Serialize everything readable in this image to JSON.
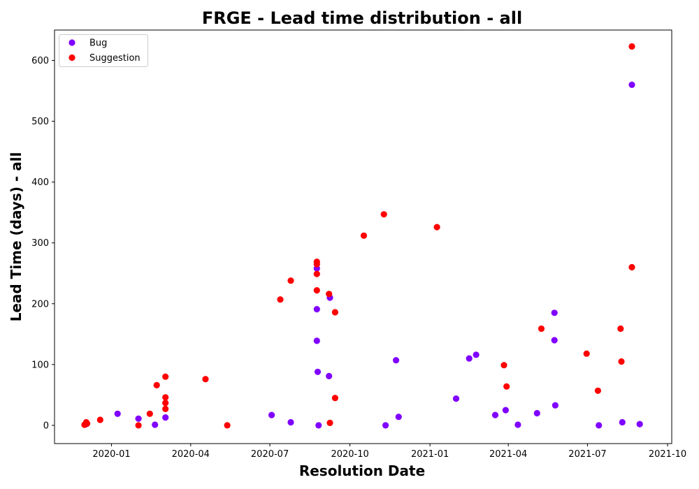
{
  "chart_data": {
    "type": "scatter",
    "title": "FRGE - Lead time distribution - all",
    "xlabel": "Resolution Date",
    "ylabel": "Lead Time (days) - all",
    "ylim": [
      -30,
      650
    ],
    "yticks": [
      0,
      100,
      200,
      300,
      400,
      500,
      600
    ],
    "xticks": [
      "2020-01",
      "2020-04",
      "2020-07",
      "2020-10",
      "2021-01",
      "2021-04",
      "2021-07",
      "2021-10"
    ],
    "grid": false,
    "legend_position": "upper-left",
    "series": [
      {
        "name": "Bug",
        "color": "#8000ff",
        "points": [
          {
            "x": "2019-12-03",
            "y": 2
          },
          {
            "x": "2020-01-08",
            "y": 19
          },
          {
            "x": "2020-02-01",
            "y": 11
          },
          {
            "x": "2020-02-20",
            "y": 1
          },
          {
            "x": "2020-03-03",
            "y": 13
          },
          {
            "x": "2020-07-03",
            "y": 17
          },
          {
            "x": "2020-07-25",
            "y": 5
          },
          {
            "x": "2020-08-24",
            "y": 258
          },
          {
            "x": "2020-08-24",
            "y": 191
          },
          {
            "x": "2020-08-24",
            "y": 139
          },
          {
            "x": "2020-08-25",
            "y": 88
          },
          {
            "x": "2020-08-26",
            "y": 0
          },
          {
            "x": "2020-09-07",
            "y": 81
          },
          {
            "x": "2020-09-08",
            "y": 210
          },
          {
            "x": "2020-11-11",
            "y": 0
          },
          {
            "x": "2020-11-23",
            "y": 107
          },
          {
            "x": "2020-11-26",
            "y": 14
          },
          {
            "x": "2021-01-31",
            "y": 44
          },
          {
            "x": "2021-02-15",
            "y": 110
          },
          {
            "x": "2021-02-23",
            "y": 116
          },
          {
            "x": "2021-03-17",
            "y": 17
          },
          {
            "x": "2021-03-29",
            "y": 25
          },
          {
            "x": "2021-04-12",
            "y": 1
          },
          {
            "x": "2021-05-04",
            "y": 20
          },
          {
            "x": "2021-05-24",
            "y": 185
          },
          {
            "x": "2021-05-24",
            "y": 140
          },
          {
            "x": "2021-05-25",
            "y": 33
          },
          {
            "x": "2021-07-14",
            "y": 0
          },
          {
            "x": "2021-08-10",
            "y": 5
          },
          {
            "x": "2021-08-21",
            "y": 560
          },
          {
            "x": "2021-08-30",
            "y": 2
          }
        ]
      },
      {
        "name": "Suggestion",
        "color": "#ff0000",
        "points": [
          {
            "x": "2019-12-01",
            "y": 1
          },
          {
            "x": "2019-12-03",
            "y": 5
          },
          {
            "x": "2019-12-04",
            "y": 3
          },
          {
            "x": "2019-12-19",
            "y": 9
          },
          {
            "x": "2020-02-01",
            "y": 0
          },
          {
            "x": "2020-02-14",
            "y": 19
          },
          {
            "x": "2020-02-22",
            "y": 66
          },
          {
            "x": "2020-03-03",
            "y": 80
          },
          {
            "x": "2020-03-03",
            "y": 46
          },
          {
            "x": "2020-03-03",
            "y": 37
          },
          {
            "x": "2020-03-03",
            "y": 27
          },
          {
            "x": "2020-04-18",
            "y": 76
          },
          {
            "x": "2020-05-13",
            "y": 0
          },
          {
            "x": "2020-07-13",
            "y": 207
          },
          {
            "x": "2020-07-25",
            "y": 238
          },
          {
            "x": "2020-08-24",
            "y": 269
          },
          {
            "x": "2020-08-24",
            "y": 265
          },
          {
            "x": "2020-08-24",
            "y": 249
          },
          {
            "x": "2020-08-24",
            "y": 222
          },
          {
            "x": "2020-09-07",
            "y": 216
          },
          {
            "x": "2020-09-08",
            "y": 4
          },
          {
            "x": "2020-09-14",
            "y": 186
          },
          {
            "x": "2020-09-14",
            "y": 45
          },
          {
            "x": "2020-10-17",
            "y": 312
          },
          {
            "x": "2020-11-09",
            "y": 347
          },
          {
            "x": "2021-01-09",
            "y": 326
          },
          {
            "x": "2021-03-27",
            "y": 99
          },
          {
            "x": "2021-03-30",
            "y": 64
          },
          {
            "x": "2021-05-09",
            "y": 159
          },
          {
            "x": "2021-06-30",
            "y": 118
          },
          {
            "x": "2021-07-13",
            "y": 57
          },
          {
            "x": "2021-08-08",
            "y": 159
          },
          {
            "x": "2021-08-09",
            "y": 105
          },
          {
            "x": "2021-08-21",
            "y": 623
          },
          {
            "x": "2021-08-21",
            "y": 260
          }
        ]
      }
    ]
  }
}
